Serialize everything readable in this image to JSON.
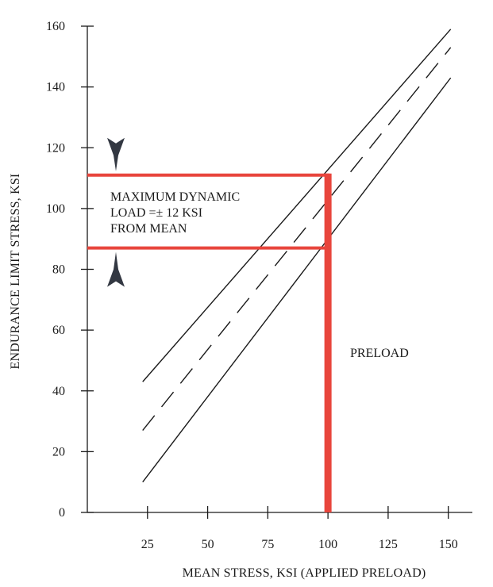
{
  "chart_data": {
    "type": "line",
    "title": "",
    "xlabel": "MEAN STRESS, KSI (APPLIED PRELOAD)",
    "ylabel": "ENDURANCE LIMIT STRESS, KSI",
    "xlim": [
      0,
      160
    ],
    "ylim": [
      0,
      160
    ],
    "xticks": [
      25,
      50,
      75,
      100,
      125,
      150
    ],
    "yticks": [
      0,
      20,
      40,
      60,
      80,
      100,
      120,
      140,
      160
    ],
    "grid": false,
    "series": [
      {
        "style": "solid-upper",
        "x": [
          23,
          151
        ],
        "y": [
          43,
          159
        ]
      },
      {
        "style": "dashed-mean",
        "x": [
          23,
          151
        ],
        "y": [
          27,
          153
        ]
      },
      {
        "style": "solid-lower",
        "x": [
          23,
          151
        ],
        "y": [
          10,
          143
        ]
      }
    ],
    "highlight": {
      "color": "#e8453c",
      "preload_x": 100,
      "upper_y": 111,
      "lower_y": 87,
      "label": "PRELOAD"
    },
    "annotation": {
      "lines": [
        "MAXIMUM DYNAMIC",
        "LOAD =± 12 KSI",
        "FROM MEAN"
      ]
    },
    "colors": {
      "ink": "#1a1a1a",
      "highlight": "#e8453c"
    }
  }
}
